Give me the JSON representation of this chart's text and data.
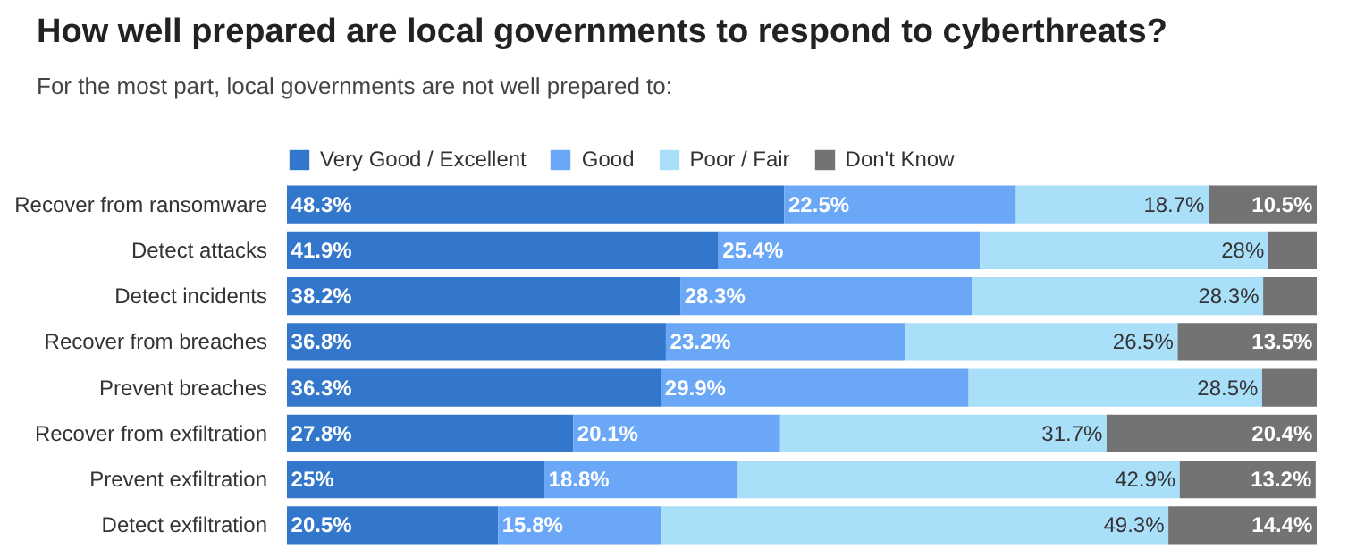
{
  "chart_data": {
    "type": "bar",
    "orientation": "horizontal",
    "stacked": true,
    "title": "How well prepared are local governments to respond to cyberthreats?",
    "subtitle": "For the most part, local governments are not well prepared to:",
    "categories": [
      "Recover from ransomware",
      "Detect attacks",
      "Detect incidents",
      "Recover from breaches",
      "Prevent breaches",
      "Recover from exfiltration",
      "Prevent exfiltration",
      "Detect exfiltration"
    ],
    "series": [
      {
        "name": "Very Good / Excellent",
        "color": "#3377cc",
        "values": [
          48.3,
          41.9,
          38.2,
          36.8,
          36.3,
          27.8,
          25,
          20.5
        ],
        "value_labels": [
          "48.3%",
          "41.9%",
          "38.2%",
          "36.8%",
          "36.3%",
          "27.8%",
          "25%",
          "20.5%"
        ]
      },
      {
        "name": "Good",
        "color": "#6aa8f7",
        "values": [
          22.5,
          25.4,
          28.3,
          23.2,
          29.9,
          20.1,
          18.8,
          15.8
        ],
        "value_labels": [
          "22.5%",
          "25.4%",
          "28.3%",
          "23.2%",
          "29.9%",
          "20.1%",
          "18.8%",
          "15.8%"
        ]
      },
      {
        "name": "Poor / Fair",
        "color": "#aadff9",
        "values": [
          18.7,
          28,
          28.3,
          26.5,
          28.5,
          31.7,
          42.9,
          49.3
        ],
        "value_labels": [
          "18.7%",
          "28%",
          "28.3%",
          "26.5%",
          "28.5%",
          "31.7%",
          "42.9%",
          "49.3%"
        ]
      },
      {
        "name": "Don't Know",
        "color": "#737373",
        "values": [
          10.5,
          4.7,
          5.2,
          13.5,
          5.3,
          20.4,
          13.2,
          14.4
        ],
        "value_labels": [
          "10.5%",
          null,
          null,
          "13.5%",
          null,
          "20.4%",
          "13.2%",
          "14.4%"
        ]
      }
    ],
    "legend": "top left",
    "grid": false
  }
}
